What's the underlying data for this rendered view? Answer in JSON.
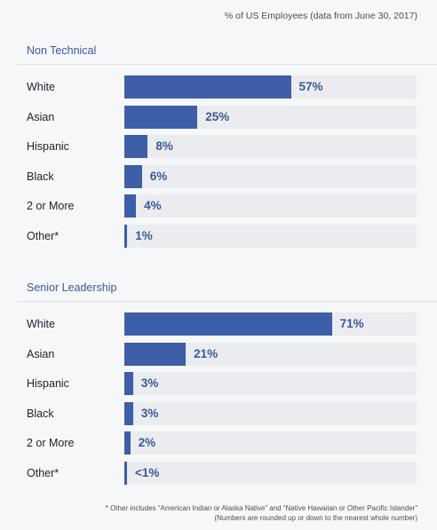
{
  "header_note": "% of US Employees (data from June 30, 2017)",
  "chart_data": [
    {
      "type": "bar",
      "title": "Non Technical",
      "categories": [
        "White",
        "Asian",
        "Hispanic",
        "Black",
        "2 or More",
        "Other*"
      ],
      "values": [
        57,
        25,
        8,
        6,
        4,
        1
      ],
      "value_labels": [
        "57%",
        "25%",
        "8%",
        "6%",
        "4%",
        "1%"
      ],
      "xlim": [
        0,
        100
      ],
      "xlabel": "",
      "ylabel": "",
      "grid": false,
      "legend": "none"
    },
    {
      "type": "bar",
      "title": "Senior Leadership",
      "categories": [
        "White",
        "Asian",
        "Hispanic",
        "Black",
        "2 or More",
        "Other*"
      ],
      "values": [
        71,
        21,
        3,
        3,
        2,
        0.5
      ],
      "value_labels": [
        "71%",
        "21%",
        "3%",
        "3%",
        "2%",
        "<1%"
      ],
      "xlim": [
        0,
        100
      ],
      "xlabel": "",
      "ylabel": "",
      "grid": false,
      "legend": "none"
    }
  ],
  "footnote": {
    "line1": "* Other includes “American Indian or Alaska Native” and “Native Hawaiian or Other Pacific Islander”",
    "line2": "(Numbers are rounded up or down to the nearest whole number)"
  },
  "colors": {
    "bar": "#3d5fa8",
    "track": "#eaecef",
    "accent_text": "#3b5998"
  }
}
